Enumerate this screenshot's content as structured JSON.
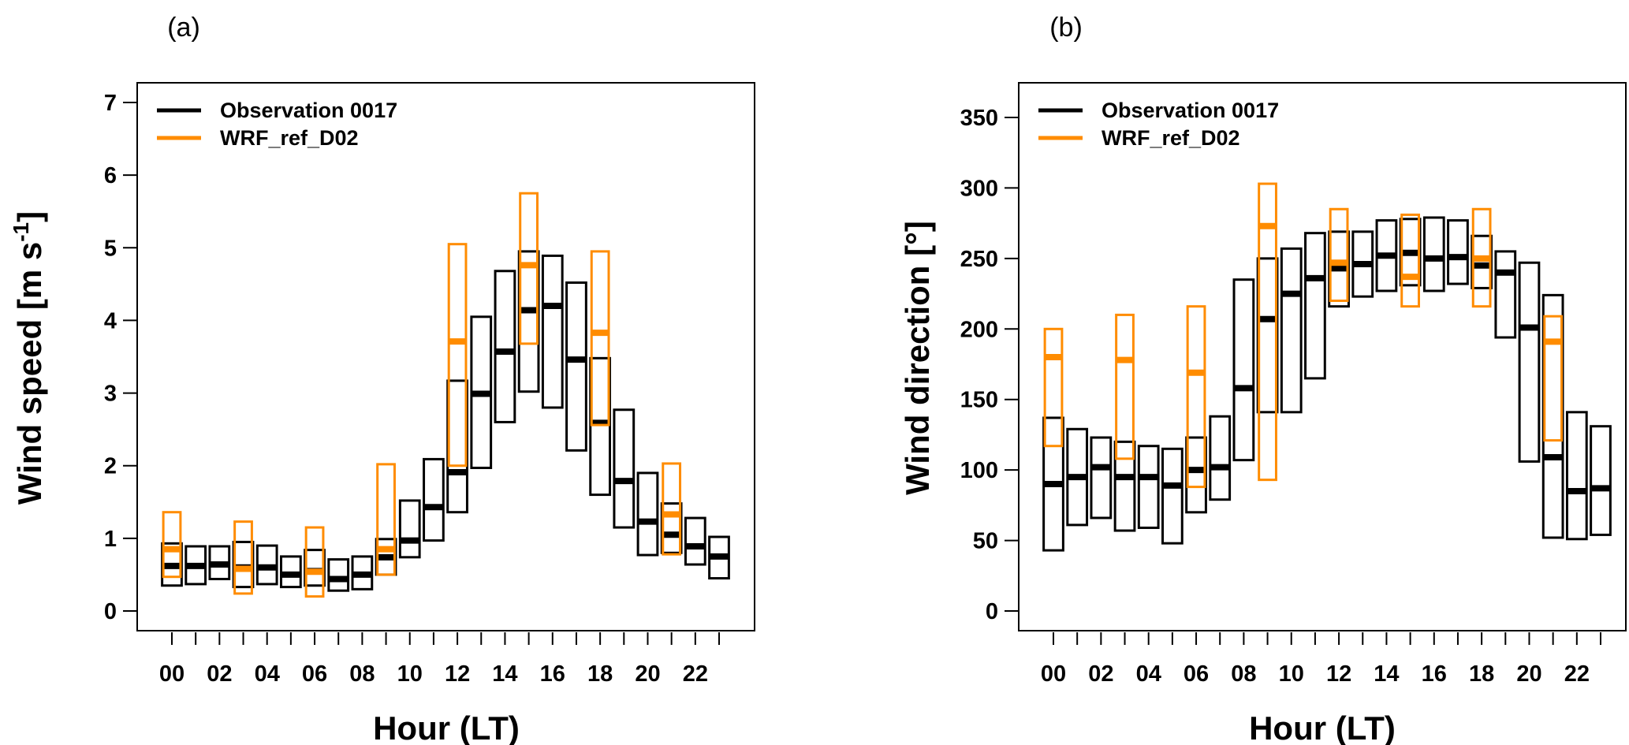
{
  "colors": {
    "obs": "#000000",
    "wrf": "#FF8C00"
  },
  "chart_data": [
    {
      "type": "box",
      "panel_label": "(a)",
      "ylabel": "Wind speed [m s^-1]",
      "ylabel_main": "Wind speed [m s",
      "ylabel_sup": "-1",
      "ylabel_end": "]",
      "xlabel": "Hour (LT)",
      "ylim": [
        0,
        7
      ],
      "yticks": [
        0,
        1,
        2,
        3,
        4,
        5,
        6,
        7
      ],
      "xticklabels": [
        "00",
        "02",
        "04",
        "06",
        "08",
        "10",
        "12",
        "14",
        "16",
        "18",
        "20",
        "22"
      ],
      "hours": [
        0,
        1,
        2,
        3,
        4,
        5,
        6,
        7,
        8,
        9,
        10,
        11,
        12,
        13,
        14,
        15,
        16,
        17,
        18,
        19,
        20,
        21,
        22,
        23
      ],
      "legend": [
        "Observation 0017",
        "WRF_ref_D02"
      ],
      "legend_position": "top-left",
      "series": [
        {
          "name": "Observation 0017",
          "hours": [
            0,
            1,
            2,
            3,
            4,
            5,
            6,
            7,
            8,
            9,
            10,
            11,
            12,
            13,
            14,
            15,
            16,
            17,
            18,
            19,
            20,
            21,
            22,
            23
          ],
          "low": [
            0.35,
            0.37,
            0.44,
            0.33,
            0.37,
            0.33,
            0.35,
            0.28,
            0.3,
            0.5,
            0.74,
            0.97,
            1.36,
            1.97,
            2.6,
            3.02,
            2.8,
            2.21,
            1.6,
            1.15,
            0.77,
            0.8,
            0.64,
            0.45
          ],
          "median": [
            0.62,
            0.62,
            0.64,
            0.6,
            0.6,
            0.5,
            0.55,
            0.44,
            0.5,
            0.74,
            0.97,
            1.43,
            1.91,
            2.99,
            3.57,
            4.14,
            4.2,
            3.46,
            2.59,
            1.79,
            1.23,
            1.05,
            0.89,
            0.75
          ],
          "high": [
            0.93,
            0.89,
            0.89,
            0.95,
            0.9,
            0.75,
            0.84,
            0.71,
            0.75,
            0.99,
            1.52,
            2.09,
            3.17,
            4.05,
            4.68,
            4.95,
            4.89,
            4.52,
            3.48,
            2.77,
            1.9,
            1.48,
            1.28,
            1.02
          ]
        },
        {
          "name": "WRF_ref_D02",
          "hours": [
            0,
            3,
            6,
            9,
            12,
            15,
            18,
            21
          ],
          "low": [
            0.47,
            0.24,
            0.2,
            0.5,
            2.0,
            3.68,
            2.56,
            0.78
          ],
          "median": [
            0.85,
            0.58,
            0.54,
            0.85,
            3.71,
            4.76,
            3.83,
            1.33
          ],
          "high": [
            1.36,
            1.23,
            1.15,
            2.02,
            5.05,
            5.75,
            4.95,
            2.03
          ]
        }
      ]
    },
    {
      "type": "box",
      "panel_label": "(b)",
      "ylabel": "Wind direction [°]",
      "xlabel": "Hour (LT)",
      "ylim": [
        0,
        350
      ],
      "yticks": [
        0,
        50,
        100,
        150,
        200,
        250,
        300,
        350
      ],
      "xticklabels": [
        "00",
        "02",
        "04",
        "06",
        "08",
        "10",
        "12",
        "14",
        "16",
        "18",
        "20",
        "22"
      ],
      "hours": [
        0,
        1,
        2,
        3,
        4,
        5,
        6,
        7,
        8,
        9,
        10,
        11,
        12,
        13,
        14,
        15,
        16,
        17,
        18,
        19,
        20,
        21,
        22,
        23
      ],
      "legend": [
        "Observation 0017",
        "WRF_ref_D02"
      ],
      "legend_position": "top-left",
      "series": [
        {
          "name": "Observation 0017",
          "hours": [
            0,
            1,
            2,
            3,
            4,
            5,
            6,
            7,
            8,
            9,
            10,
            11,
            12,
            13,
            14,
            15,
            16,
            17,
            18,
            19,
            20,
            21,
            22,
            23
          ],
          "low": [
            43,
            61,
            66,
            57,
            59,
            48,
            70,
            79,
            107,
            141,
            141,
            165,
            216,
            223,
            227,
            231,
            227,
            232,
            229,
            194,
            106,
            52,
            51,
            54
          ],
          "median": [
            90,
            95,
            102,
            95,
            95,
            89,
            100,
            102,
            158,
            207,
            225,
            236,
            243,
            246,
            252,
            254,
            250,
            251,
            245,
            240,
            201,
            109,
            85,
            87
          ],
          "high": [
            137,
            129,
            123,
            120,
            117,
            115,
            123,
            138,
            235,
            250,
            257,
            268,
            269,
            269,
            277,
            278,
            279,
            277,
            266,
            255,
            247,
            224,
            141,
            131
          ]
        },
        {
          "name": "WRF_ref_D02",
          "hours": [
            0,
            3,
            6,
            9,
            12,
            15,
            18,
            21
          ],
          "low": [
            117,
            108,
            88,
            93,
            220,
            216,
            216,
            121
          ],
          "median": [
            180,
            178,
            169,
            273,
            247,
            237,
            250,
            191
          ],
          "high": [
            200,
            210,
            216,
            303,
            285,
            281,
            285,
            209
          ]
        }
      ]
    }
  ]
}
